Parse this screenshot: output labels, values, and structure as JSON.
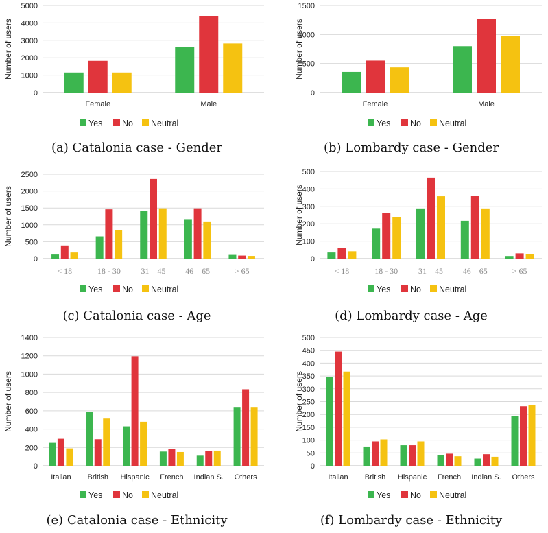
{
  "colors": {
    "yes": "#3cb64f",
    "no": "#e0353c",
    "neutral": "#f5c211",
    "grid": "#d9d9d9",
    "axis": "#bfbfbf"
  },
  "legend": [
    "Yes",
    "No",
    "Neutral"
  ],
  "captions": [
    "(a) Catalonia case - Gender",
    "(b) Lombardy case - Gender",
    "(c) Catalonia case - Age",
    "(d) Lombardy case - Age",
    "(e) Catalonia case - Ethnicity",
    "(f) Lombardy case - Ethnicity"
  ],
  "chart_data": [
    {
      "type": "bar",
      "title": "",
      "xlabel": "",
      "ylabel": "Number of users",
      "categories": [
        "Female",
        "Male"
      ],
      "yticks": [
        0,
        1000,
        2000,
        3000,
        4000,
        5000
      ],
      "ylim": [
        0,
        5000
      ],
      "series": [
        {
          "name": "Yes",
          "values": [
            1150,
            2600
          ]
        },
        {
          "name": "No",
          "values": [
            1820,
            4380
          ]
        },
        {
          "name": "Neutral",
          "values": [
            1150,
            2820
          ]
        }
      ],
      "grid": true,
      "legend": "bottom"
    },
    {
      "type": "bar",
      "title": "",
      "xlabel": "",
      "ylabel": "Number of users",
      "categories": [
        "Female",
        "Male"
      ],
      "yticks": [
        0,
        500,
        1000,
        1500
      ],
      "ylim": [
        0,
        1500
      ],
      "series": [
        {
          "name": "Yes",
          "values": [
            355,
            800
          ]
        },
        {
          "name": "No",
          "values": [
            550,
            1275
          ]
        },
        {
          "name": "Neutral",
          "values": [
            435,
            980
          ]
        }
      ],
      "grid": true,
      "legend": "bottom"
    },
    {
      "type": "bar",
      "title": "",
      "xlabel": "",
      "ylabel": "Number of users",
      "categories": [
        "< 18",
        "18 - 30",
        "31 – 45",
        "46 – 65",
        "> 65"
      ],
      "yticks": [
        0,
        500,
        1000,
        1500,
        2000,
        2500
      ],
      "ylim": [
        0,
        2500
      ],
      "series": [
        {
          "name": "Yes",
          "values": [
            120,
            660,
            1420,
            1170,
            110
          ]
        },
        {
          "name": "No",
          "values": [
            390,
            1460,
            2360,
            1490,
            90
          ]
        },
        {
          "name": "Neutral",
          "values": [
            180,
            850,
            1490,
            1100,
            80
          ]
        }
      ],
      "grid": true,
      "legend": "bottom"
    },
    {
      "type": "bar",
      "title": "",
      "xlabel": "",
      "ylabel": "Number of users",
      "categories": [
        "< 18",
        "18 - 30",
        "31 – 45",
        "46 – 65",
        "> 65"
      ],
      "yticks": [
        0,
        100,
        200,
        300,
        400,
        500
      ],
      "ylim": [
        0,
        500
      ],
      "series": [
        {
          "name": "Yes",
          "values": [
            35,
            172,
            288,
            217,
            15
          ]
        },
        {
          "name": "No",
          "values": [
            62,
            262,
            465,
            362,
            30
          ]
        },
        {
          "name": "Neutral",
          "values": [
            42,
            238,
            358,
            288,
            25
          ]
        }
      ],
      "grid": true,
      "legend": "bottom"
    },
    {
      "type": "bar",
      "title": "",
      "xlabel": "",
      "ylabel": "Number of users",
      "categories": [
        "Italian",
        "British",
        "Hispanic",
        "French",
        "Indian S.",
        "Others"
      ],
      "yticks": [
        0,
        200,
        400,
        600,
        800,
        1000,
        1200,
        1400
      ],
      "ylim": [
        0,
        1400
      ],
      "series": [
        {
          "name": "Yes",
          "values": [
            250,
            590,
            430,
            155,
            110,
            635
          ]
        },
        {
          "name": "No",
          "values": [
            295,
            290,
            1195,
            185,
            160,
            835
          ]
        },
        {
          "name": "Neutral",
          "values": [
            190,
            515,
            480,
            150,
            165,
            635
          ]
        }
      ],
      "grid": true,
      "legend": "bottom"
    },
    {
      "type": "bar",
      "title": "",
      "xlabel": "",
      "ylabel": "Number of users",
      "categories": [
        "Italian",
        "British",
        "Hispanic",
        "French",
        "Indian S.",
        "Others"
      ],
      "yticks": [
        0,
        50,
        100,
        150,
        200,
        250,
        300,
        350,
        400,
        450,
        500
      ],
      "ylim": [
        0,
        500
      ],
      "series": [
        {
          "name": "Yes",
          "values": [
            345,
            75,
            80,
            42,
            28,
            193
          ]
        },
        {
          "name": "No",
          "values": [
            445,
            95,
            80,
            47,
            45,
            232
          ]
        },
        {
          "name": "Neutral",
          "values": [
            367,
            103,
            95,
            37,
            35,
            238
          ]
        }
      ],
      "grid": true,
      "legend": "bottom"
    }
  ]
}
